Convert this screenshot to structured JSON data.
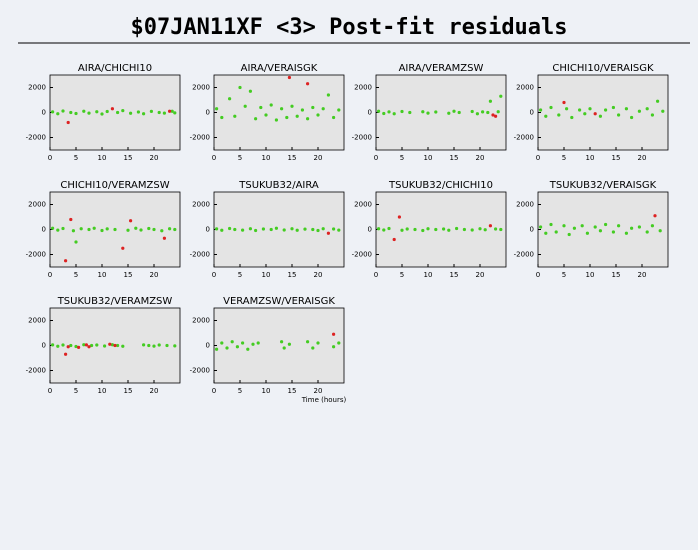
{
  "title": "$07JAN11XF <3> Post-fit residuals",
  "chart_data": [
    {
      "type": "scatter",
      "title": "AIRA/CHICHI10",
      "xlim": [
        0,
        25
      ],
      "ylim": [
        -3000,
        3000
      ],
      "xticks": [
        0,
        5,
        10,
        15,
        20
      ],
      "yticks": [
        -2000,
        0,
        2000
      ],
      "series": [
        {
          "color": "#44cc22",
          "x": [
            0.5,
            1.5,
            2.5,
            4,
            5,
            6.5,
            7.5,
            9,
            10,
            11,
            13,
            14,
            15.5,
            17,
            18,
            19.5,
            21,
            22,
            23.5,
            24
          ],
          "values": [
            50,
            -100,
            120,
            0,
            -80,
            100,
            -50,
            60,
            -120,
            80,
            0,
            150,
            -60,
            40,
            -100,
            90,
            0,
            -50,
            100,
            -30
          ]
        },
        {
          "color": "#dd2222",
          "x": [
            3.5,
            12,
            23
          ],
          "values": [
            -800,
            300,
            100
          ]
        }
      ]
    },
    {
      "type": "scatter",
      "title": "AIRA/VERAISGK",
      "xlim": [
        0,
        25
      ],
      "ylim": [
        -3000,
        3000
      ],
      "xticks": [
        0,
        5,
        10,
        15,
        20
      ],
      "yticks": [
        -2000,
        0,
        2000
      ],
      "series": [
        {
          "color": "#44cc22",
          "x": [
            0.5,
            1.5,
            3,
            4,
            5,
            6,
            7,
            8,
            9,
            10,
            11,
            12,
            13,
            14,
            15,
            16,
            17,
            18,
            19,
            20,
            21,
            22,
            23,
            24
          ],
          "values": [
            300,
            -400,
            1100,
            -300,
            2000,
            500,
            1700,
            -500,
            400,
            -200,
            600,
            -600,
            300,
            -400,
            500,
            -300,
            200,
            -500,
            400,
            -200,
            300,
            1400,
            -400,
            200
          ]
        },
        {
          "color": "#dd2222",
          "x": [
            14.5,
            18
          ],
          "values": [
            2800,
            2300
          ]
        }
      ]
    },
    {
      "type": "scatter",
      "title": "AIRA/VERAMZSW",
      "xlim": [
        0,
        25
      ],
      "ylim": [
        -3000,
        3000
      ],
      "xticks": [
        0,
        5,
        10,
        15,
        20
      ],
      "yticks": [
        -2000,
        0,
        2000
      ],
      "series": [
        {
          "color": "#44cc22",
          "x": [
            0.5,
            1.5,
            2.5,
            3.5,
            5,
            6.5,
            9,
            10,
            11.5,
            14,
            15,
            16,
            18.5,
            19.5,
            20.5,
            21.5,
            22,
            23.5,
            24
          ],
          "values": [
            100,
            -80,
            50,
            -100,
            80,
            0,
            60,
            -50,
            40,
            -60,
            100,
            0,
            80,
            -100,
            50,
            0,
            900,
            60,
            1300
          ]
        },
        {
          "color": "#dd2222",
          "x": [
            22.5,
            23
          ],
          "values": [
            -200,
            -300
          ]
        }
      ]
    },
    {
      "type": "scatter",
      "title": "CHICHI10/VERAISGK",
      "xlim": [
        0,
        25
      ],
      "ylim": [
        -3000,
        3000
      ],
      "xticks": [
        0,
        5,
        10,
        15,
        20
      ],
      "yticks": [
        -2000,
        0,
        2000
      ],
      "series": [
        {
          "color": "#44cc22",
          "x": [
            0.5,
            1.5,
            2.5,
            4,
            5.5,
            6.5,
            8,
            9,
            10,
            12,
            13,
            14.5,
            15.5,
            17,
            18,
            19.5,
            21,
            22,
            23,
            24
          ],
          "values": [
            200,
            -300,
            400,
            -200,
            300,
            -400,
            200,
            -100,
            300,
            -300,
            200,
            400,
            -200,
            300,
            -400,
            100,
            300,
            -200,
            900,
            100
          ]
        },
        {
          "color": "#dd2222",
          "x": [
            5,
            11
          ],
          "values": [
            800,
            -100
          ]
        }
      ]
    },
    {
      "type": "scatter",
      "title": "CHICHI10/VERAMZSW",
      "xlim": [
        0,
        25
      ],
      "ylim": [
        -3000,
        3000
      ],
      "xticks": [
        0,
        5,
        10,
        15,
        20
      ],
      "yticks": [
        -2000,
        0,
        2000
      ],
      "series": [
        {
          "color": "#44cc22",
          "x": [
            0.5,
            1.5,
            2.5,
            4.5,
            5,
            6,
            7.5,
            8.5,
            10,
            11,
            12.5,
            15,
            16.5,
            17.5,
            19,
            20,
            21.5,
            23,
            24
          ],
          "values": [
            100,
            -50,
            80,
            -100,
            -1000,
            60,
            0,
            100,
            -80,
            50,
            0,
            -60,
            100,
            -40,
            80,
            0,
            -100,
            60,
            0
          ]
        },
        {
          "color": "#dd2222",
          "x": [
            3,
            4,
            14,
            15.5,
            22
          ],
          "values": [
            -2500,
            800,
            -1500,
            700,
            -700
          ]
        }
      ]
    },
    {
      "type": "scatter",
      "title": "TSUKUB32/AIRA",
      "xlim": [
        0,
        25
      ],
      "ylim": [
        -3000,
        3000
      ],
      "xticks": [
        0,
        5,
        10,
        15,
        20
      ],
      "yticks": [
        -2000,
        0,
        2000
      ],
      "series": [
        {
          "color": "#44cc22",
          "x": [
            0.5,
            1.5,
            3,
            4,
            5.5,
            7,
            8,
            9.5,
            11,
            12,
            13.5,
            15,
            16,
            17.5,
            19,
            20,
            21,
            23,
            24
          ],
          "values": [
            50,
            -60,
            80,
            0,
            -50,
            60,
            -80,
            40,
            0,
            100,
            -40,
            60,
            -60,
            30,
            0,
            -80,
            60,
            40,
            -50
          ]
        },
        {
          "color": "#dd2222",
          "x": [
            22
          ],
          "values": [
            -300
          ]
        }
      ]
    },
    {
      "type": "scatter",
      "title": "TSUKUB32/CHICHI10",
      "xlim": [
        0,
        25
      ],
      "ylim": [
        -3000,
        3000
      ],
      "xticks": [
        0,
        5,
        10,
        15,
        20
      ],
      "yticks": [
        -2000,
        0,
        2000
      ],
      "series": [
        {
          "color": "#44cc22",
          "x": [
            0.5,
            1.5,
            2.5,
            5,
            6,
            7.5,
            9,
            10,
            11.5,
            13,
            14,
            15.5,
            17,
            18.5,
            20,
            21,
            23,
            24
          ],
          "values": [
            60,
            -40,
            80,
            -60,
            40,
            0,
            -80,
            60,
            0,
            40,
            -60,
            80,
            0,
            -40,
            60,
            -20,
            40,
            0
          ]
        },
        {
          "color": "#dd2222",
          "x": [
            4.5,
            3.5,
            22
          ],
          "values": [
            1000,
            -800,
            300
          ]
        }
      ]
    },
    {
      "type": "scatter",
      "title": "TSUKUB32/VERAISGK",
      "xlim": [
        0,
        25
      ],
      "ylim": [
        -3000,
        3000
      ],
      "xticks": [
        0,
        5,
        10,
        15,
        20
      ],
      "yticks": [
        -2000,
        0,
        2000
      ],
      "series": [
        {
          "color": "#44cc22",
          "x": [
            0.5,
            1.5,
            2.5,
            3.5,
            5,
            6,
            7,
            8.5,
            9.5,
            11,
            12,
            13,
            14.5,
            15.5,
            17,
            18,
            19.5,
            21,
            22,
            23.5
          ],
          "values": [
            200,
            -300,
            400,
            -200,
            300,
            -400,
            100,
            300,
            -300,
            200,
            -100,
            400,
            -200,
            300,
            -300,
            100,
            200,
            -200,
            300,
            -100
          ]
        },
        {
          "color": "#dd2222",
          "x": [
            22.5
          ],
          "values": [
            1100
          ]
        }
      ]
    },
    {
      "type": "scatter",
      "title": "TSUKUB32/VERAMZSW",
      "xlim": [
        0,
        25
      ],
      "ylim": [
        -3000,
        3000
      ],
      "xticks": [
        0,
        5,
        10,
        15,
        20
      ],
      "yticks": [
        -2000,
        0,
        2000
      ],
      "series": [
        {
          "color": "#44cc22",
          "x": [
            0.5,
            1.5,
            2.5,
            4,
            5,
            6.5,
            8,
            9,
            10.5,
            12,
            13,
            14,
            18,
            19,
            20,
            21,
            22.5,
            24
          ],
          "values": [
            50,
            -60,
            40,
            0,
            -80,
            60,
            0,
            40,
            -40,
            60,
            0,
            -60,
            50,
            0,
            -50,
            40,
            0,
            -30
          ]
        },
        {
          "color": "#dd2222",
          "x": [
            3,
            3.5,
            5.5,
            7,
            7.5,
            11.5,
            12.5
          ],
          "values": [
            -700,
            -100,
            -150,
            50,
            -100,
            100,
            0
          ]
        }
      ]
    },
    {
      "type": "scatter",
      "title": "VERAMZSW/VERAISGK",
      "xlabel": "Time (hours)",
      "xlim": [
        0,
        25
      ],
      "ylim": [
        -3000,
        3000
      ],
      "xticks": [
        0,
        5,
        10,
        15,
        20
      ],
      "yticks": [
        -2000,
        0,
        2000
      ],
      "series": [
        {
          "color": "#44cc22",
          "x": [
            0.5,
            1.5,
            2.5,
            3.5,
            4.5,
            5.5,
            6.5,
            7.5,
            8.5,
            13,
            13.5,
            14.5,
            18,
            19,
            20,
            23,
            24
          ],
          "values": [
            -300,
            200,
            -200,
            300,
            -100,
            200,
            -300,
            100,
            200,
            300,
            -200,
            100,
            300,
            -200,
            200,
            -100,
            200
          ]
        },
        {
          "color": "#dd2222",
          "x": [
            23
          ],
          "values": [
            900
          ]
        }
      ]
    }
  ]
}
